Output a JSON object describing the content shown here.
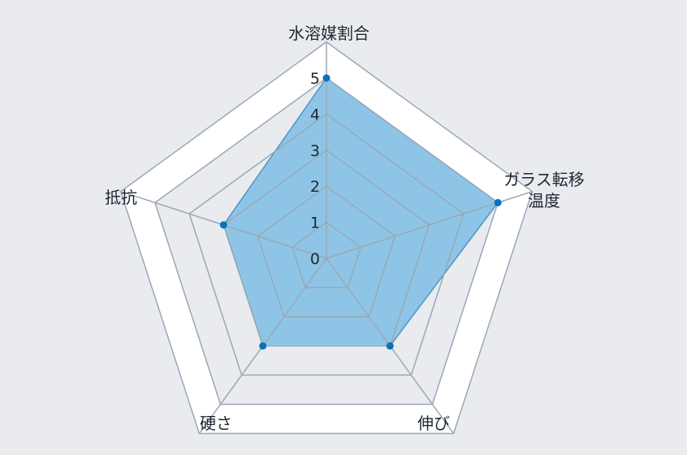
{
  "chart_data": {
    "type": "radar",
    "categories": [
      [
        "水溶媒割合"
      ],
      [
        "ガラス転移",
        "温度"
      ],
      [
        "伸び"
      ],
      [
        "硬さ"
      ],
      [
        "抵抗"
      ]
    ],
    "values": [
      5,
      5,
      3,
      3,
      3
    ],
    "scale": {
      "min": 0,
      "max": 5,
      "ticks": [
        0,
        1,
        2,
        3,
        4,
        5
      ]
    },
    "grid_rings": 6,
    "colors": {
      "background": "#e9ebef",
      "outer_band": "#ffffff",
      "grid": "#9aa8b6",
      "series_fill": "#8ec5e6",
      "series_stroke": "#4f95c2",
      "point": "#0a72b8"
    }
  }
}
